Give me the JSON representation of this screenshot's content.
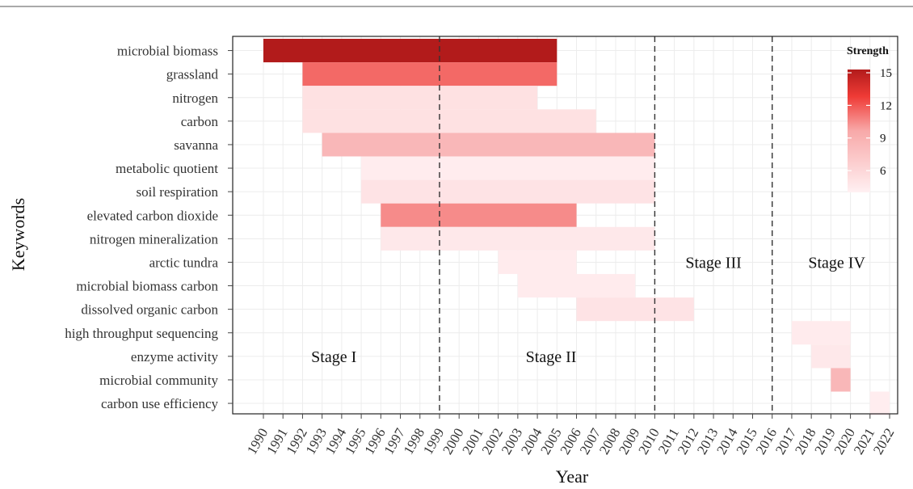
{
  "chart_data": {
    "type": "heatmap",
    "title": "",
    "xlabel": "Year",
    "ylabel": "Keywords",
    "x": [
      1990,
      1991,
      1992,
      1993,
      1994,
      1995,
      1996,
      1997,
      1998,
      1999,
      2000,
      2001,
      2002,
      2003,
      2004,
      2005,
      2006,
      2007,
      2008,
      2009,
      2010,
      2011,
      2012,
      2013,
      2014,
      2015,
      2016,
      2017,
      2018,
      2019,
      2020,
      2021,
      2022
    ],
    "keywords": [
      "microbial biomass",
      "grassland",
      "nitrogen",
      "carbon",
      "savanna",
      "metabolic quotient",
      "soil respiration",
      "elevated carbon dioxide",
      "nitrogen mineralization",
      "arctic tundra",
      "microbial biomass carbon",
      "dissolved organic carbon",
      "high throughput sequencing",
      "enzyme activity",
      "microbial community",
      "carbon use efficiency"
    ],
    "bursts": [
      {
        "keyword": "microbial biomass",
        "begin": 1990,
        "end": 2005,
        "strength": 15.3
      },
      {
        "keyword": "grassland",
        "begin": 1992,
        "end": 2005,
        "strength": 11.5
      },
      {
        "keyword": "nitrogen",
        "begin": 1992,
        "end": 2004,
        "strength": 5.2
      },
      {
        "keyword": "carbon",
        "begin": 1992,
        "end": 2007,
        "strength": 5.2
      },
      {
        "keyword": "savanna",
        "begin": 1993,
        "end": 2010,
        "strength": 8.5
      },
      {
        "keyword": "metabolic quotient",
        "begin": 1995,
        "end": 2010,
        "strength": 4.3
      },
      {
        "keyword": "soil respiration",
        "begin": 1995,
        "end": 2010,
        "strength": 5.0
      },
      {
        "keyword": "elevated carbon dioxide",
        "begin": 1996,
        "end": 2006,
        "strength": 10.5
      },
      {
        "keyword": "nitrogen mineralization",
        "begin": 1996,
        "end": 2010,
        "strength": 4.6
      },
      {
        "keyword": "arctic tundra",
        "begin": 2002,
        "end": 2006,
        "strength": 4.4
      },
      {
        "keyword": "microbial biomass carbon",
        "begin": 2003,
        "end": 2009,
        "strength": 4.4
      },
      {
        "keyword": "dissolved organic carbon",
        "begin": 2006,
        "end": 2012,
        "strength": 5.0
      },
      {
        "keyword": "high throughput sequencing",
        "begin": 2017,
        "end": 2020,
        "strength": 4.4
      },
      {
        "keyword": "enzyme activity",
        "begin": 2018,
        "end": 2020,
        "strength": 4.6
      },
      {
        "keyword": "microbial community",
        "begin": 2019,
        "end": 2020,
        "strength": 8.5
      },
      {
        "keyword": "carbon use efficiency",
        "begin": 2021,
        "end": 2022,
        "strength": 4.2
      }
    ],
    "stage_dividers": [
      1999,
      2010,
      2016
    ],
    "stages": [
      {
        "label": "Stage I",
        "x": 1993.6,
        "row": "enzyme activity"
      },
      {
        "label": "Stage II",
        "x": 2004.7,
        "row": "enzyme activity"
      },
      {
        "label": "Stage III",
        "x": 2013.0,
        "row": "arctic tundra"
      },
      {
        "label": "Stage IV",
        "x": 2019.3,
        "row": "arctic tundra"
      }
    ],
    "legend": {
      "title": "Strength",
      "ticks": [
        15,
        12,
        9,
        6
      ],
      "range": [
        4,
        15.3
      ],
      "placement": "top-right"
    },
    "colors": {
      "low": "#fff0f2",
      "mid": "#ef3b36",
      "high": "#b21b1b"
    },
    "grid": true
  }
}
